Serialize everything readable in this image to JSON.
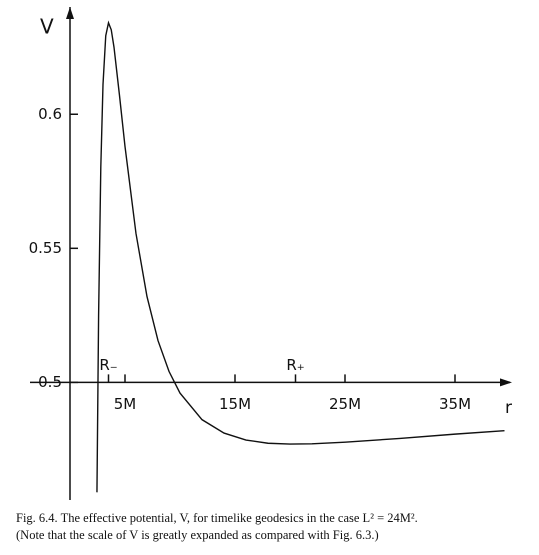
{
  "chart_data": {
    "type": "line",
    "ylabel": "V",
    "xlabel": "r",
    "x": [
      2.45,
      2.6,
      2.8,
      3,
      3.25,
      3.5,
      3.75,
      4,
      4.5,
      5,
      6,
      7,
      8,
      9,
      10,
      12,
      14,
      16,
      18,
      20,
      22,
      25,
      30,
      35,
      39.5
    ],
    "series": [
      {
        "color": "#111111",
        "values": [
          0.459,
          0.525,
          0.5802,
          0.6111,
          0.6293,
          0.6341,
          0.6315,
          0.625,
          0.607,
          0.588,
          0.5555,
          0.532,
          0.5156,
          0.5041,
          0.496,
          0.4861,
          0.4811,
          0.4785,
          0.4773,
          0.477,
          0.4771,
          0.4777,
          0.4791,
          0.4807,
          0.482
        ]
      }
    ],
    "xlim": [
      0,
      40
    ],
    "xticks": [
      {
        "value": 5,
        "label": "5M"
      },
      {
        "value": 15,
        "label": "15M"
      },
      {
        "value": 25,
        "label": "25M"
      },
      {
        "value": 35,
        "label": "35M"
      }
    ],
    "ylim": [
      0.458,
      0.64
    ],
    "yticks": [
      0.5,
      0.55,
      0.6
    ],
    "annotations": [
      {
        "text": "R₋",
        "x": 3.5
      },
      {
        "text": "R₊",
        "x": 20.5
      }
    ],
    "caption": [
      "Fig. 6.4.   The effective potential, V, for timelike geodesics in the case L² = 24M².",
      "(Note that the scale of V is greatly expanded as compared with Fig. 6.3.)"
    ]
  }
}
